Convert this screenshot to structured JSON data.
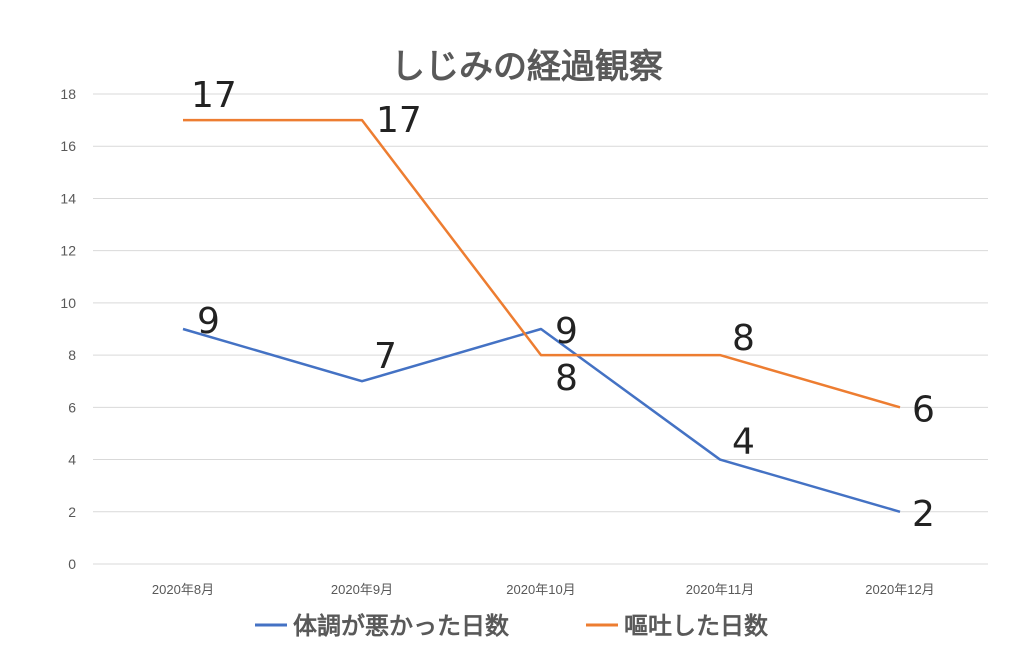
{
  "chart_data": {
    "type": "line",
    "title": "しじみの経過観察",
    "categories": [
      "2020年8月",
      "2020年9月",
      "2020年10月",
      "2020年11月",
      "2020年12月"
    ],
    "ylim": [
      0,
      18
    ],
    "yticks": [
      "0",
      "2",
      "4",
      "6",
      "8",
      "10",
      "12",
      "14",
      "16",
      "18"
    ],
    "grid": true,
    "legend_position": "bottom",
    "series": [
      {
        "name": "体調が悪かった日数",
        "values": [
          9,
          7,
          9,
          4,
          2
        ],
        "color": "#4472c4"
      },
      {
        "name": "嘔吐した日数",
        "values": [
          17,
          17,
          8,
          8,
          6
        ],
        "color": "#ed7d31"
      }
    ]
  }
}
